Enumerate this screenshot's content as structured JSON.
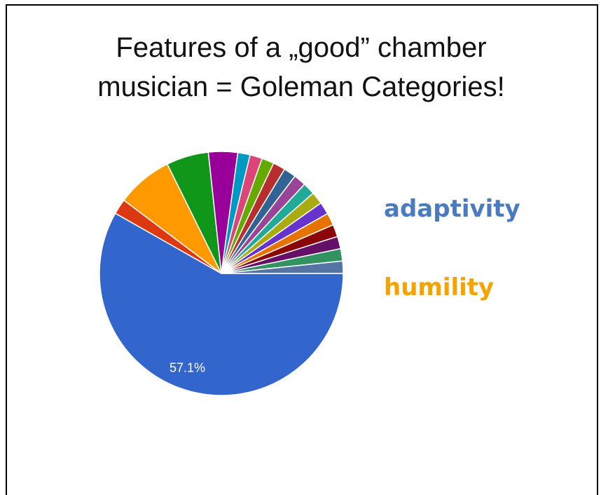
{
  "title": {
    "line1": "Features of a „good” chamber",
    "line2": "musician = Goleman Categories!"
  },
  "legend": {
    "adaptivity": {
      "label": "adaptivity",
      "color": "#4a7abf"
    },
    "humility": {
      "label": "humility",
      "color": "#f5a300"
    }
  },
  "chart_data": {
    "type": "pie",
    "title": "Features of a „good” chamber musician = Goleman Categories!",
    "start_angle_deg": 0,
    "direction": "clockwise",
    "slices": [
      {
        "value": 57.1,
        "color": "#3366cc",
        "label": "57.1%"
      },
      {
        "value": 2.0,
        "color": "#dc3912",
        "label": ""
      },
      {
        "value": 7.3,
        "color": "#ff9900",
        "label": ""
      },
      {
        "value": 5.5,
        "color": "#109618",
        "label": ""
      },
      {
        "value": 3.8,
        "color": "#990099",
        "label": ""
      },
      {
        "value": 1.6,
        "color": "#0099c6",
        "label": ""
      },
      {
        "value": 1.6,
        "color": "#dd4477",
        "label": ""
      },
      {
        "value": 1.6,
        "color": "#66aa00",
        "label": ""
      },
      {
        "value": 1.6,
        "color": "#b82e2e",
        "label": ""
      },
      {
        "value": 1.6,
        "color": "#316395",
        "label": ""
      },
      {
        "value": 1.6,
        "color": "#994499",
        "label": ""
      },
      {
        "value": 1.6,
        "color": "#22aa99",
        "label": ""
      },
      {
        "value": 1.6,
        "color": "#aaaa11",
        "label": ""
      },
      {
        "value": 1.6,
        "color": "#6633cc",
        "label": ""
      },
      {
        "value": 1.6,
        "color": "#e67300",
        "label": ""
      },
      {
        "value": 1.6,
        "color": "#8b0707",
        "label": ""
      },
      {
        "value": 1.6,
        "color": "#651067",
        "label": ""
      },
      {
        "value": 1.6,
        "color": "#329262",
        "label": ""
      },
      {
        "value": 1.6,
        "color": "#5574a6",
        "label": ""
      }
    ]
  }
}
